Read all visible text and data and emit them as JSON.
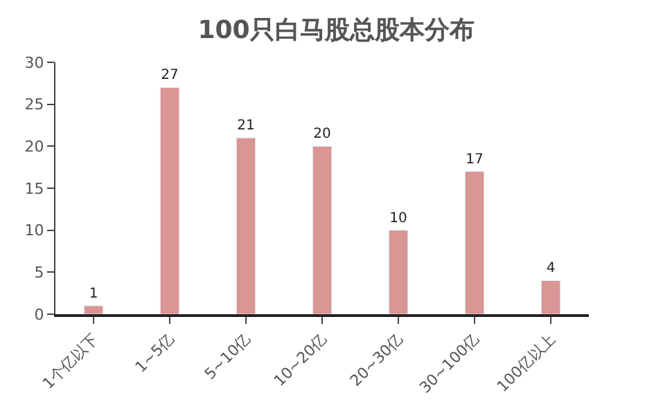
{
  "chart_data": {
    "type": "bar",
    "title": "100只白马股总股本分布",
    "categories": [
      "1个亿以下",
      "1~5亿",
      "5~10亿",
      "10~20亿",
      "20~30亿",
      "30~100亿",
      "100亿以上"
    ],
    "values": [
      1,
      27,
      21,
      20,
      10,
      17,
      4
    ],
    "color": "#d99694",
    "ylim": [
      0,
      30
    ],
    "yticks": [
      0,
      5,
      10,
      15,
      20,
      25,
      30
    ],
    "data_labels": true
  }
}
